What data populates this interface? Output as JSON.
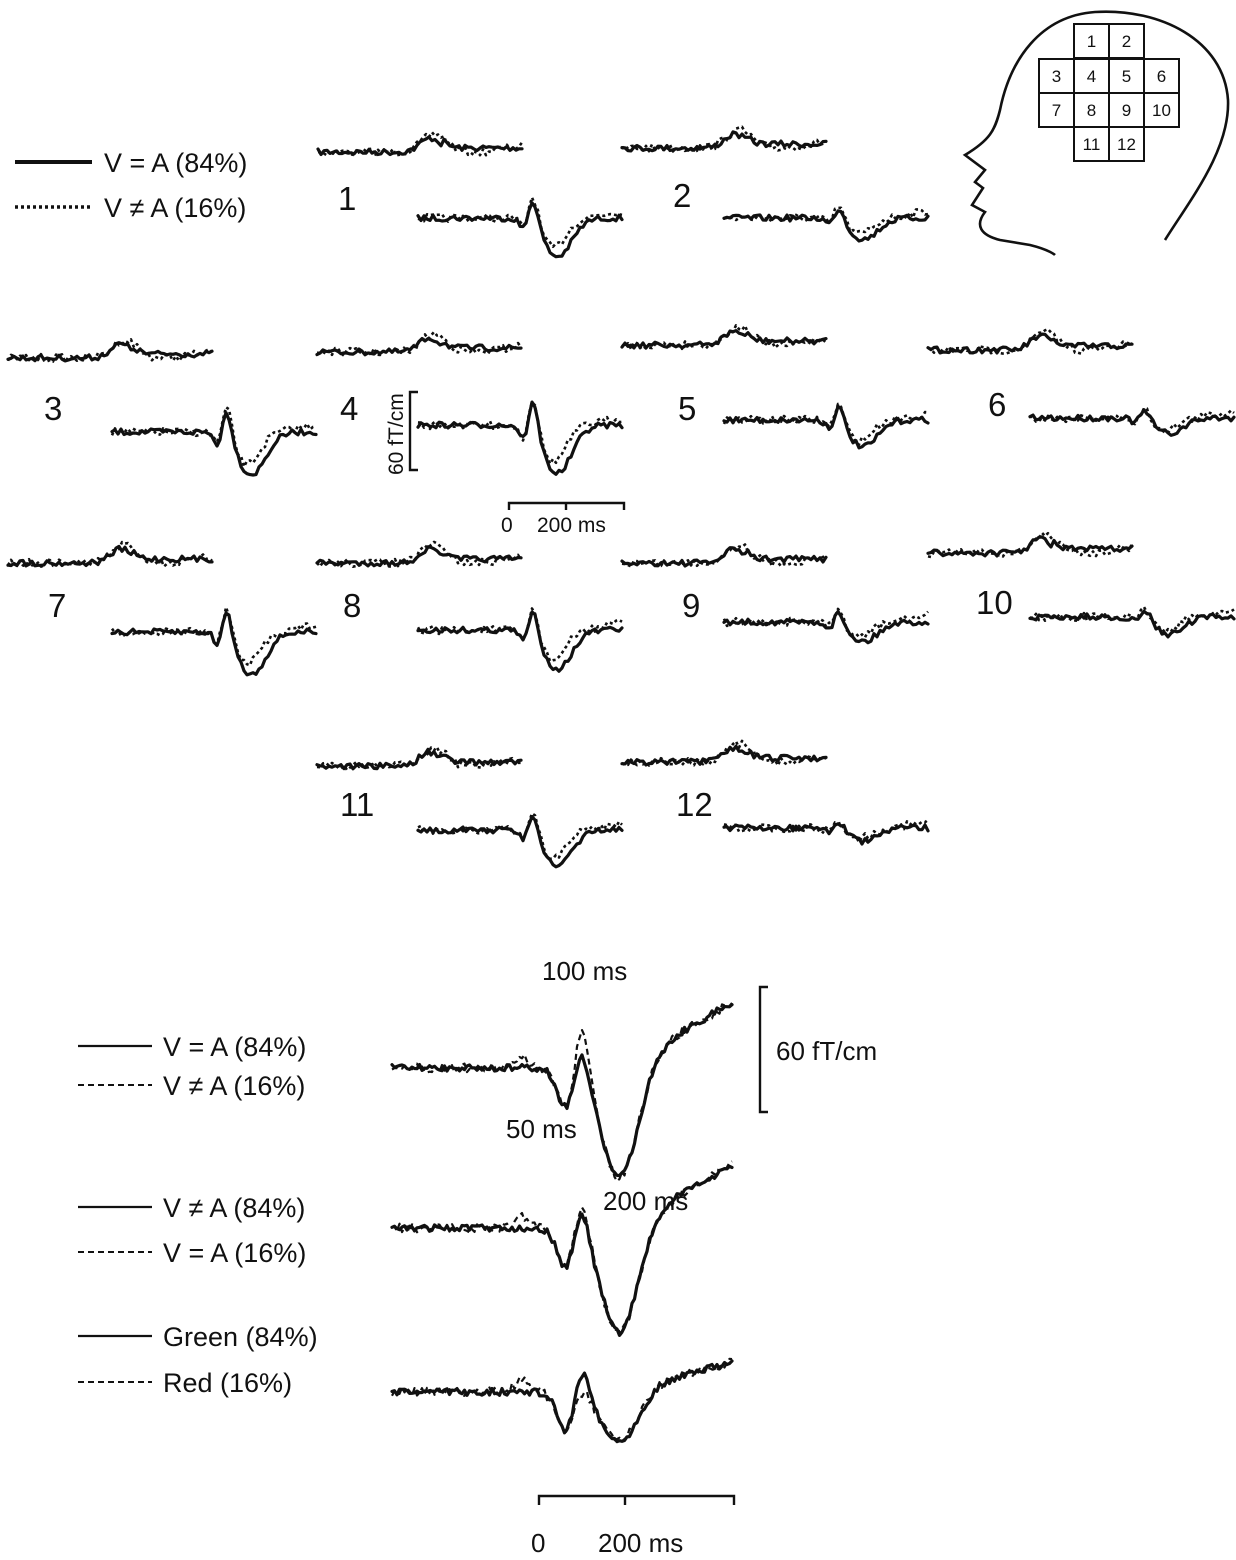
{
  "figure": {
    "top_legend": {
      "solid": "V = A (84%)",
      "dotted": "V ≠ A (16%)"
    },
    "head_map": {
      "cells": [
        "1",
        "2",
        "3",
        "4",
        "5",
        "6",
        "7",
        "8",
        "9",
        "10",
        "11",
        "12"
      ]
    },
    "channels": [
      "1",
      "2",
      "3",
      "4",
      "5",
      "6",
      "7",
      "8",
      "9",
      "10",
      "11",
      "12"
    ],
    "top_scale": {
      "amplitude": "60 fT/cm",
      "time_start": "0",
      "time_end": "200 ms"
    },
    "bottom_legends": [
      {
        "solid": "V = A (84%)",
        "dashed": "V ≠ A (16%)"
      },
      {
        "solid": "V ≠ A (84%)",
        "dashed": "V = A (16%)"
      },
      {
        "solid": "Green (84%)",
        "dashed": "Red (16%)"
      }
    ],
    "annotations": {
      "peak_100": "100 ms",
      "peak_50": "50 ms",
      "peak_200": "200 ms"
    },
    "bottom_scale": {
      "amplitude": "60 fT/cm",
      "time_start": "0",
      "time_end": "200 ms"
    }
  }
}
